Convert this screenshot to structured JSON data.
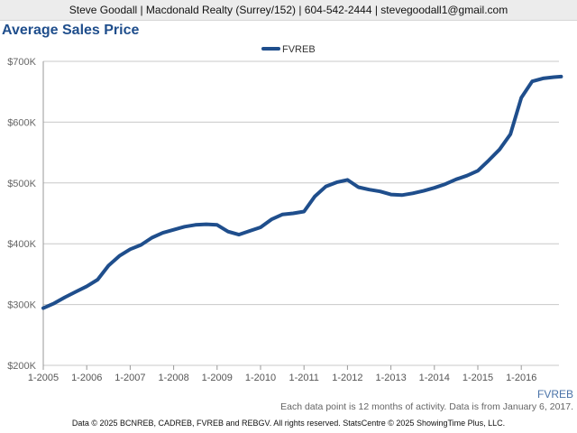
{
  "header": {
    "contact": "Steve Goodall | Macdonald Realty (Surrey/152) | 604-542-2444 | stevegoodall1@gmail.com"
  },
  "source_label": "FVREB",
  "note": "Each data point is 12 months of activity. Data is from January 6, 2017.",
  "footer": {
    "copyright": "Data © 2025 BCNREB, CADREB, FVREB and REBGV. All rights reserved. StatsCentre © 2025 ShowingTime Plus, LLC."
  },
  "colors": {
    "series": "#1f4e8c",
    "title": "#1f4e8c",
    "grid": "#c8c8c8"
  },
  "chart_data": {
    "type": "line",
    "title": "Average Sales Price",
    "legend_position": "top-center",
    "grid": true,
    "x_tick_labels": [
      "1-2005",
      "1-2006",
      "1-2007",
      "1-2008",
      "1-2009",
      "1-2010",
      "1-2011",
      "1-2012",
      "1-2013",
      "1-2014",
      "1-2015",
      "1-2016"
    ],
    "x_range": [
      "2005-01",
      "2016-12"
    ],
    "y_tick_labels": [
      "$200K",
      "$300K",
      "$400K",
      "$500K",
      "$600K",
      "$700K"
    ],
    "y_ticks": [
      200000,
      300000,
      400000,
      500000,
      600000,
      700000
    ],
    "ylim": [
      200000,
      700000
    ],
    "series": [
      {
        "name": "FVREB",
        "x": [
          "2005-01",
          "2005-04",
          "2005-07",
          "2005-10",
          "2006-01",
          "2006-04",
          "2006-07",
          "2006-10",
          "2007-01",
          "2007-04",
          "2007-07",
          "2007-10",
          "2008-01",
          "2008-04",
          "2008-07",
          "2008-10",
          "2009-01",
          "2009-04",
          "2009-07",
          "2009-10",
          "2010-01",
          "2010-04",
          "2010-07",
          "2010-10",
          "2011-01",
          "2011-04",
          "2011-07",
          "2011-10",
          "2012-01",
          "2012-04",
          "2012-07",
          "2012-10",
          "2013-01",
          "2013-04",
          "2013-07",
          "2013-10",
          "2014-01",
          "2014-04",
          "2014-07",
          "2014-10",
          "2015-01",
          "2015-04",
          "2015-07",
          "2015-10",
          "2016-01",
          "2016-04",
          "2016-07",
          "2016-10",
          "2016-12"
        ],
        "values": [
          294000,
          302000,
          312000,
          321000,
          330000,
          341000,
          364000,
          380000,
          391000,
          398000,
          410000,
          418000,
          423000,
          428000,
          431000,
          432000,
          431000,
          420000,
          415000,
          421000,
          427000,
          440000,
          448000,
          450000,
          453000,
          478000,
          494000,
          501000,
          505000,
          493000,
          489000,
          486000,
          481000,
          480000,
          483000,
          487000,
          492000,
          498000,
          506000,
          512000,
          520000,
          537000,
          555000,
          580000,
          640000,
          667000,
          672000,
          674000,
          675000
        ]
      }
    ]
  }
}
